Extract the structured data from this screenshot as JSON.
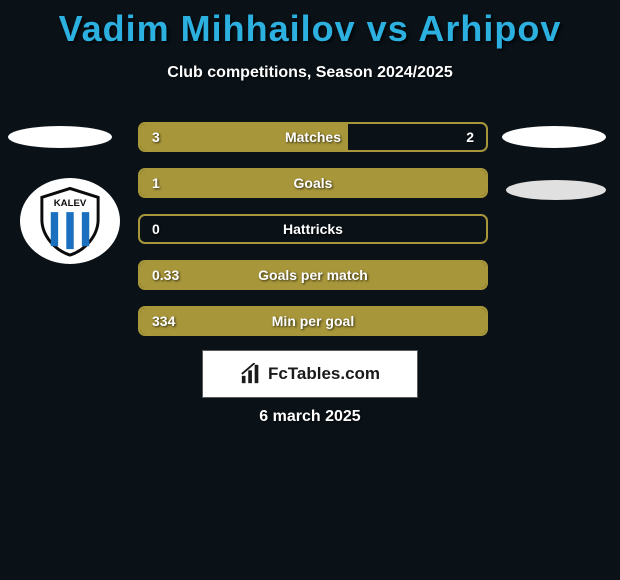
{
  "header": {
    "title": "Vadim Mihhailov vs Arhipov",
    "subtitle": "Club competitions, Season 2024/2025",
    "title_color": "#2cb0e0",
    "subtitle_color": "#ffffff"
  },
  "club_logo": {
    "name": "KALEV",
    "stripe_color": "#1a6fbf",
    "text_color": "#0b0b0b"
  },
  "stats": {
    "accent_color": "#a7963a",
    "background_color": "#0a1218",
    "text_color": "#ffffff",
    "rows": [
      {
        "label": "Matches",
        "left": "3",
        "right": "2",
        "fill_pct": 60
      },
      {
        "label": "Goals",
        "left": "1",
        "right": "",
        "fill_pct": 100
      },
      {
        "label": "Hattricks",
        "left": "0",
        "right": "",
        "fill_pct": 0
      },
      {
        "label": "Goals per match",
        "left": "0.33",
        "right": "",
        "fill_pct": 100
      },
      {
        "label": "Min per goal",
        "left": "334",
        "right": "",
        "fill_pct": 100
      }
    ]
  },
  "branding": {
    "text": "FcTables.com"
  },
  "footer": {
    "date": "6 march 2025"
  }
}
